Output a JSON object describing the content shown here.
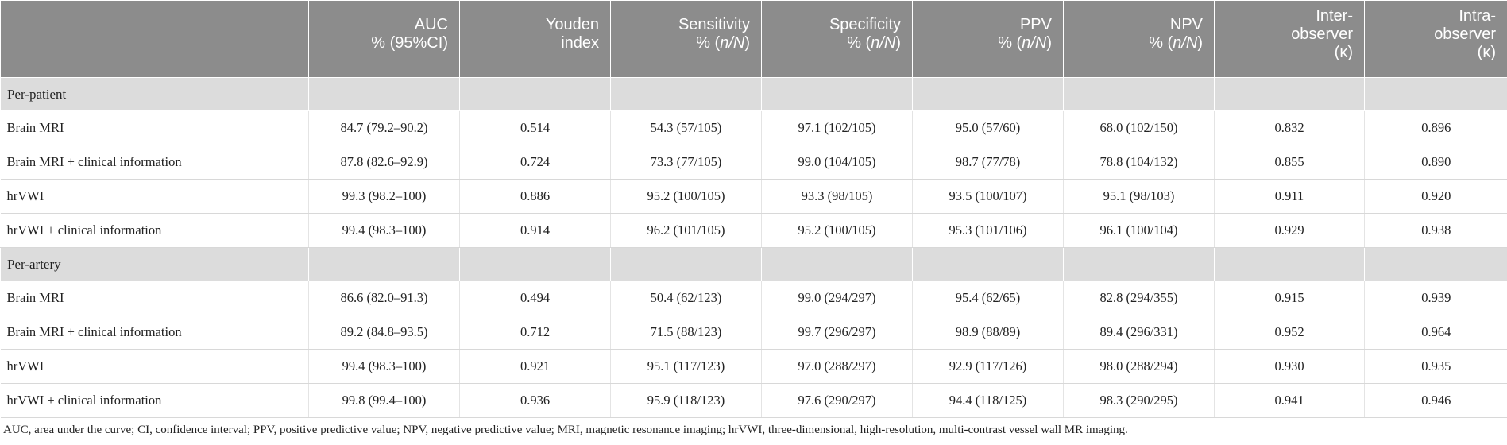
{
  "headers": [
    {
      "l1": "",
      "l2": ""
    },
    {
      "l1": "AUC",
      "l2": "% (95%CI)"
    },
    {
      "l1": "Youden",
      "l2": "index"
    },
    {
      "l1": "Sensitivity",
      "l2a": "% (",
      "l2i": "n/N",
      "l2b": ")"
    },
    {
      "l1": "Specificity",
      "l2a": "% (",
      "l2i": "n/N",
      "l2b": ")"
    },
    {
      "l1": "PPV",
      "l2a": "% (",
      "l2i": "n/N",
      "l2b": ")"
    },
    {
      "l1": "NPV",
      "l2a": "% (",
      "l2i": "n/N",
      "l2b": ")"
    },
    {
      "l1": "Inter-",
      "l2": "observer",
      "l3": "(κ)"
    },
    {
      "l1": "Intra-",
      "l2": "observer",
      "l3": "(κ)"
    }
  ],
  "sections": [
    {
      "label": "Per-patient",
      "rows": [
        [
          "Brain MRI",
          "84.7 (79.2–90.2)",
          "0.514",
          "54.3 (57/105)",
          "97.1 (102/105)",
          "95.0 (57/60)",
          "68.0 (102/150)",
          "0.832",
          "0.896"
        ],
        [
          "Brain MRI + clinical information",
          "87.8 (82.6–92.9)",
          "0.724",
          "73.3 (77/105)",
          "99.0 (104/105)",
          "98.7 (77/78)",
          "78.8 (104/132)",
          "0.855",
          "0.890"
        ],
        [
          "hrVWI",
          "99.3 (98.2–100)",
          "0.886",
          "95.2 (100/105)",
          "93.3 (98/105)",
          "93.5 (100/107)",
          "95.1 (98/103)",
          "0.911",
          "0.920"
        ],
        [
          "hrVWI + clinical information",
          "99.4 (98.3–100)",
          "0.914",
          "96.2 (101/105)",
          "95.2 (100/105)",
          "95.3 (101/106)",
          "96.1 (100/104)",
          "0.929",
          "0.938"
        ]
      ]
    },
    {
      "label": "Per-artery",
      "rows": [
        [
          "Brain MRI",
          "86.6 (82.0–91.3)",
          "0.494",
          "50.4 (62/123)",
          "99.0 (294/297)",
          "95.4 (62/65)",
          "82.8 (294/355)",
          "0.915",
          "0.939"
        ],
        [
          "Brain MRI + clinical information",
          "89.2 (84.8–93.5)",
          "0.712",
          "71.5 (88/123)",
          "99.7 (296/297)",
          "98.9 (88/89)",
          "89.4 (296/331)",
          "0.952",
          "0.964"
        ],
        [
          "hrVWI",
          "99.4 (98.3–100)",
          "0.921",
          "95.1 (117/123)",
          "97.0 (288/297)",
          "92.9 (117/126)",
          "98.0 (288/294)",
          "0.930",
          "0.935"
        ],
        [
          "hrVWI + clinical information",
          "99.8 (99.4–100)",
          "0.936",
          "95.9 (118/123)",
          "97.6 (290/297)",
          "94.4 (118/125)",
          "98.3 (290/295)",
          "0.941",
          "0.946"
        ]
      ]
    }
  ],
  "footnote": "AUC, area under the curve; CI, confidence interval; PPV, positive predictive value; NPV, negative predictive value; MRI, magnetic resonance imaging; hrVWI, three-dimensional, high-resolution, multi-contrast vessel wall MR imaging."
}
